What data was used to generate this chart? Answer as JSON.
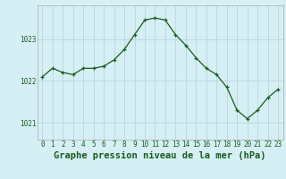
{
  "x": [
    0,
    1,
    2,
    3,
    4,
    5,
    6,
    7,
    8,
    9,
    10,
    11,
    12,
    13,
    14,
    15,
    16,
    17,
    18,
    19,
    20,
    21,
    22,
    23
  ],
  "y": [
    1022.1,
    1022.3,
    1022.2,
    1022.15,
    1022.3,
    1022.3,
    1022.35,
    1022.5,
    1022.75,
    1023.1,
    1023.45,
    1023.5,
    1023.45,
    1023.1,
    1022.85,
    1022.55,
    1022.3,
    1022.15,
    1021.85,
    1021.3,
    1021.1,
    1021.3,
    1021.6,
    1021.8
  ],
  "line_color": "#1a5c1a",
  "marker_color": "#1a5c1a",
  "bg_color": "#d5eff5",
  "grid_color": "#c0d8e0",
  "axis_label_color": "#1a5c1a",
  "xlabel": "Graphe pression niveau de la mer (hPa)",
  "xlabel_fontsize": 7.5,
  "tick_fontsize": 5.5,
  "ylabel_ticks": [
    1021,
    1022,
    1023
  ],
  "ylim": [
    1020.6,
    1023.8
  ],
  "xlim": [
    -0.5,
    23.5
  ]
}
